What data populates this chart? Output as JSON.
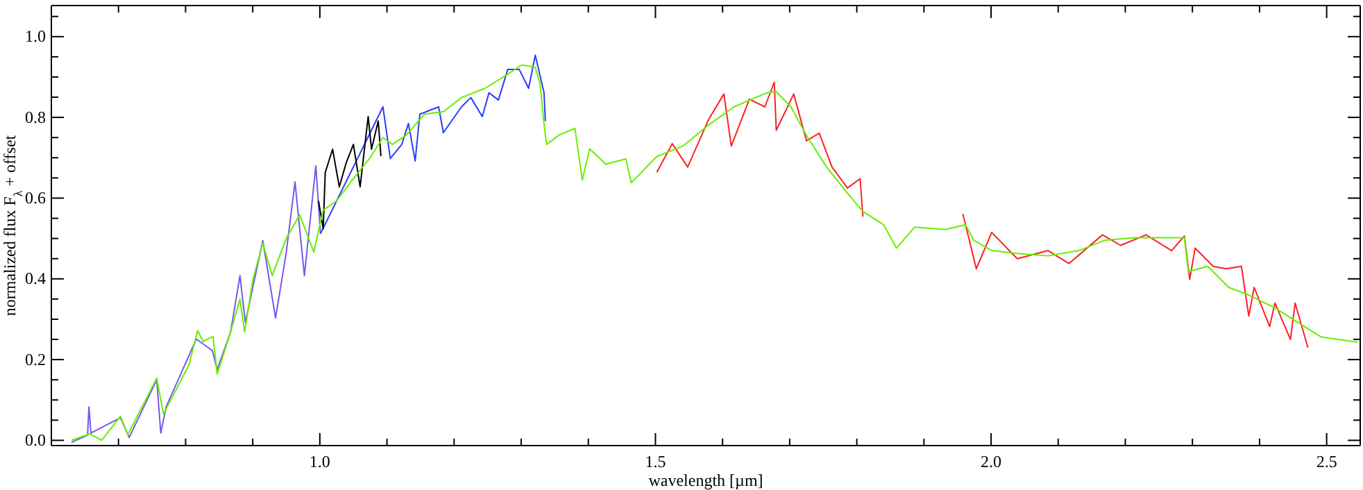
{
  "chart_data": {
    "type": "line",
    "xlabel": "wavelength [µm]",
    "ylabel": "normalized flux F$_{λ}$ + offset",
    "xlim": [
      0.6,
      2.55
    ],
    "ylim": [
      -0.013,
      1.077
    ],
    "xticks": [
      {
        "value": 0.6,
        "label": null
      },
      {
        "value": 0.7,
        "label": null
      },
      {
        "value": 0.8,
        "label": null
      },
      {
        "value": 0.9,
        "label": null
      },
      {
        "value": 1.0,
        "label": "1.0"
      },
      {
        "value": 1.1,
        "label": null
      },
      {
        "value": 1.2,
        "label": null
      },
      {
        "value": 1.3,
        "label": null
      },
      {
        "value": 1.4,
        "label": null
      },
      {
        "value": 1.5,
        "label": "1.5"
      },
      {
        "value": 1.6,
        "label": null
      },
      {
        "value": 1.7,
        "label": null
      },
      {
        "value": 1.8,
        "label": null
      },
      {
        "value": 1.9,
        "label": null
      },
      {
        "value": 2.0,
        "label": "2.0"
      },
      {
        "value": 2.1,
        "label": null
      },
      {
        "value": 2.2,
        "label": null
      },
      {
        "value": 2.3,
        "label": null
      },
      {
        "value": 2.4,
        "label": null
      },
      {
        "value": 2.5,
        "label": "2.5"
      }
    ],
    "yticks": [
      {
        "value": 0,
        "label": "0.0"
      },
      {
        "value": 0.05,
        "label": null
      },
      {
        "value": 0.1,
        "label": null
      },
      {
        "value": 0.15,
        "label": null
      },
      {
        "value": 0.2,
        "label": "0.2"
      },
      {
        "value": 0.25,
        "label": null
      },
      {
        "value": 0.3,
        "label": null
      },
      {
        "value": 0.35,
        "label": null
      },
      {
        "value": 0.4,
        "label": "0.4"
      },
      {
        "value": 0.45,
        "label": null
      },
      {
        "value": 0.5,
        "label": null
      },
      {
        "value": 0.55,
        "label": null
      },
      {
        "value": 0.6,
        "label": "0.6"
      },
      {
        "value": 0.65,
        "label": null
      },
      {
        "value": 0.7,
        "label": null
      },
      {
        "value": 0.75,
        "label": null
      },
      {
        "value": 0.8,
        "label": "0.8"
      },
      {
        "value": 0.85,
        "label": null
      },
      {
        "value": 0.9,
        "label": null
      },
      {
        "value": 0.95,
        "label": null
      },
      {
        "value": 1.0,
        "label": "1.0"
      },
      {
        "value": 1.05,
        "label": null
      }
    ],
    "grid": false,
    "line_style": "solid",
    "marker": "none",
    "series": [
      {
        "color": "#7755ee",
        "x": [
          0.63,
          0.654,
          0.656,
          0.659,
          0.703,
          0.716,
          0.757,
          0.763,
          0.771,
          0.816,
          0.84,
          0.847,
          0.867,
          0.881,
          0.889,
          0.915,
          0.934,
          0.942,
          0.95,
          0.963,
          0.977,
          0.994,
          1.001
        ],
        "values": [
          -0.005,
          0.013,
          0.083,
          0.018,
          0.056,
          0.007,
          0.15,
          0.018,
          0.083,
          0.251,
          0.222,
          0.175,
          0.268,
          0.408,
          0.292,
          0.495,
          0.303,
          0.384,
          0.466,
          0.64,
          0.408,
          0.68,
          0.512
        ]
      },
      {
        "color": "#2a3cff",
        "x": [
          1.001,
          1.094,
          1.105,
          1.122,
          1.132,
          1.142,
          1.149,
          1.177,
          1.184,
          1.211,
          1.225,
          1.242,
          1.252,
          1.266,
          1.28,
          1.297,
          1.311,
          1.321,
          1.334,
          1.336
        ],
        "values": [
          0.512,
          0.826,
          0.698,
          0.733,
          0.785,
          0.692,
          0.808,
          0.826,
          0.762,
          0.826,
          0.849,
          0.802,
          0.861,
          0.843,
          0.919,
          0.919,
          0.872,
          0.954,
          0.861,
          0.791
        ]
      },
      {
        "color": "#000000",
        "x": [
          0.998,
          1.005,
          1.008,
          1.019,
          1.029,
          1.039,
          1.05,
          1.06,
          1.072,
          1.077,
          1.087,
          1.091
        ],
        "values": [
          0.593,
          0.524,
          0.663,
          0.721,
          0.628,
          0.686,
          0.733,
          0.628,
          0.802,
          0.721,
          0.791,
          0.704
        ]
      },
      {
        "color": "#ff2020",
        "x": [
          1.502,
          1.525,
          1.548,
          1.579,
          1.602,
          1.613,
          1.64,
          1.663,
          1.677,
          1.68,
          1.706,
          1.725,
          1.744,
          1.763,
          1.786,
          1.805,
          1.809,
          1.9,
          1.958,
          1.978,
          2.001,
          2.039,
          2.085,
          2.116,
          2.166,
          2.193,
          2.231,
          2.269,
          2.288,
          2.296,
          2.304,
          2.331,
          2.35,
          2.373,
          2.384,
          2.392,
          2.415,
          2.423,
          2.446,
          2.453,
          2.472
        ],
        "values": [
          0.664,
          0.735,
          0.677,
          0.794,
          0.858,
          0.729,
          0.845,
          0.826,
          0.887,
          0.768,
          0.858,
          0.742,
          0.761,
          0.677,
          0.625,
          0.648,
          0.554,
          null,
          0.561,
          0.425,
          0.515,
          0.45,
          0.47,
          0.438,
          0.509,
          0.483,
          0.509,
          0.47,
          0.506,
          0.399,
          0.476,
          0.431,
          0.425,
          0.431,
          0.308,
          0.379,
          0.282,
          0.34,
          0.25,
          0.34,
          0.23
        ]
      },
      {
        "color": "#66ee00",
        "x": [
          0.63,
          0.657,
          0.675,
          0.703,
          0.714,
          0.757,
          0.767,
          0.805,
          0.818,
          0.826,
          0.841,
          0.847,
          0.867,
          0.881,
          0.888,
          0.9,
          0.915,
          0.929,
          0.95,
          0.97,
          0.991,
          1.005,
          1.025,
          1.046,
          1.074,
          1.094,
          1.108,
          1.129,
          1.156,
          1.184,
          1.211,
          1.246,
          1.28,
          1.301,
          1.321,
          1.328,
          1.335,
          1.338,
          1.356,
          1.38,
          1.391,
          1.402,
          1.426,
          1.456,
          1.464,
          1.502,
          1.541,
          1.579,
          1.617,
          1.663,
          1.679,
          1.702,
          1.725,
          1.755,
          1.786,
          1.809,
          1.84,
          1.859,
          1.886,
          1.932,
          1.962,
          1.974,
          2.001,
          2.039,
          2.085,
          2.131,
          2.17,
          2.215,
          2.262,
          2.288,
          2.294,
          2.323,
          2.354,
          2.384,
          2.423,
          2.461,
          2.492,
          2.546
        ],
        "values": [
          0.0,
          0.016,
          0.0,
          0.06,
          0.014,
          0.154,
          0.065,
          0.187,
          0.272,
          0.245,
          0.257,
          0.164,
          0.268,
          0.35,
          0.268,
          0.396,
          0.489,
          0.408,
          0.5,
          0.559,
          0.466,
          0.57,
          0.593,
          0.64,
          0.698,
          0.75,
          0.733,
          0.756,
          0.808,
          0.814,
          0.849,
          0.872,
          0.907,
          0.93,
          0.924,
          0.884,
          0.768,
          0.733,
          0.756,
          0.773,
          0.645,
          0.722,
          0.684,
          0.697,
          0.638,
          0.703,
          0.729,
          0.781,
          0.826,
          0.859,
          0.865,
          0.826,
          0.755,
          0.677,
          0.612,
          0.567,
          0.534,
          0.476,
          0.528,
          0.522,
          0.534,
          0.496,
          0.47,
          0.463,
          0.457,
          0.47,
          0.496,
          0.502,
          0.502,
          0.502,
          0.418,
          0.431,
          0.379,
          0.36,
          0.328,
          0.288,
          0.256,
          0.243
        ]
      }
    ]
  }
}
